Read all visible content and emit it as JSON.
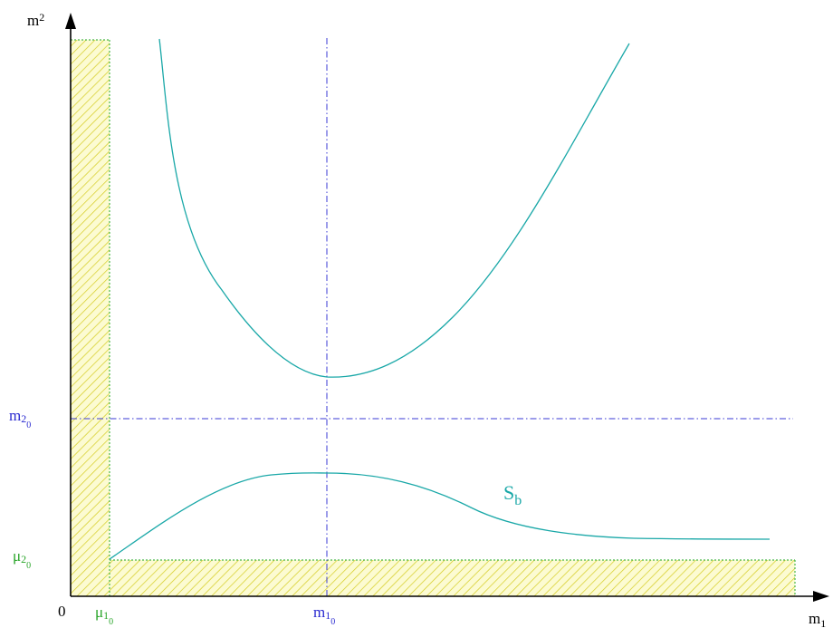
{
  "labels": {
    "origin": "0",
    "axis_x": {
      "base": "m",
      "sub": "1"
    },
    "axis_y": {
      "base": "m",
      "sub": "2"
    },
    "mu1_0": {
      "base": "μ",
      "sub": "1",
      "subsub": "0"
    },
    "mu2_0": {
      "base": "μ",
      "sub": "2",
      "subsub": "0"
    },
    "m1_0": {
      "base": "m",
      "sub": "1",
      "subsub": "0"
    },
    "m2_0": {
      "base": "m",
      "sub": "2",
      "subsub": "0"
    },
    "curve": {
      "base": "S",
      "sub": "b"
    }
  },
  "colors": {
    "axis": "#000000",
    "hatch_fill": "#f0e83a",
    "hatch_line": "#c8c000",
    "boundary": "#2aa52a",
    "reference_line": "#2a2ad0",
    "curve": "#1aa8a8",
    "mu_label": "#2aa52a",
    "m_label": "#2a2ad0",
    "curve_label": "#1aa8a8"
  }
}
